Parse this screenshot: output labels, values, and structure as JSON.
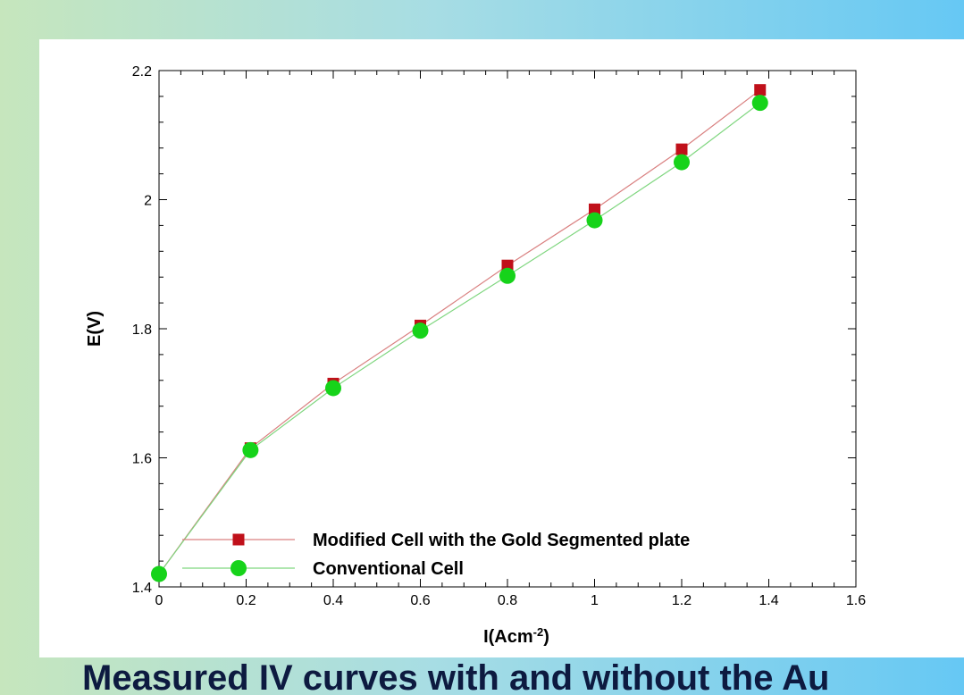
{
  "chart_data": {
    "type": "line",
    "title": "",
    "xlabel": "I(Acm",
    "xlabel_sup": "-2",
    "xlabel_close": ")",
    "ylabel": "E(V)",
    "xlim": [
      0,
      1.6
    ],
    "ylim": [
      1.4,
      2.2
    ],
    "x_ticks": [
      "0",
      "0.2",
      "0.4",
      "0.6",
      "0.8",
      "1",
      "1.2",
      "1.4",
      "1.6"
    ],
    "y_ticks": [
      "1.4",
      "1.6",
      "1.8",
      "2",
      "2.2"
    ],
    "grid": false,
    "legend_position": "bottom-right",
    "series": [
      {
        "name": "Modified Cell with the Gold  Segmented plate",
        "marker": "square",
        "color": "#c0101a",
        "line_color": "#d98080",
        "x": [
          0,
          0.21,
          0.4,
          0.6,
          0.8,
          1.0,
          1.2,
          1.38
        ],
        "y": [
          1.42,
          1.615,
          1.715,
          1.805,
          1.898,
          1.985,
          2.078,
          2.17
        ]
      },
      {
        "name": "Conventional Cell",
        "marker": "circle",
        "color": "#16d31a",
        "line_color": "#7fd67f",
        "x": [
          0,
          0.21,
          0.4,
          0.6,
          0.8,
          1.0,
          1.2,
          1.38
        ],
        "y": [
          1.42,
          1.612,
          1.708,
          1.797,
          1.882,
          1.968,
          2.058,
          2.15
        ]
      }
    ]
  },
  "caption": {
    "text": "Measured IV curves with and without the Au"
  }
}
